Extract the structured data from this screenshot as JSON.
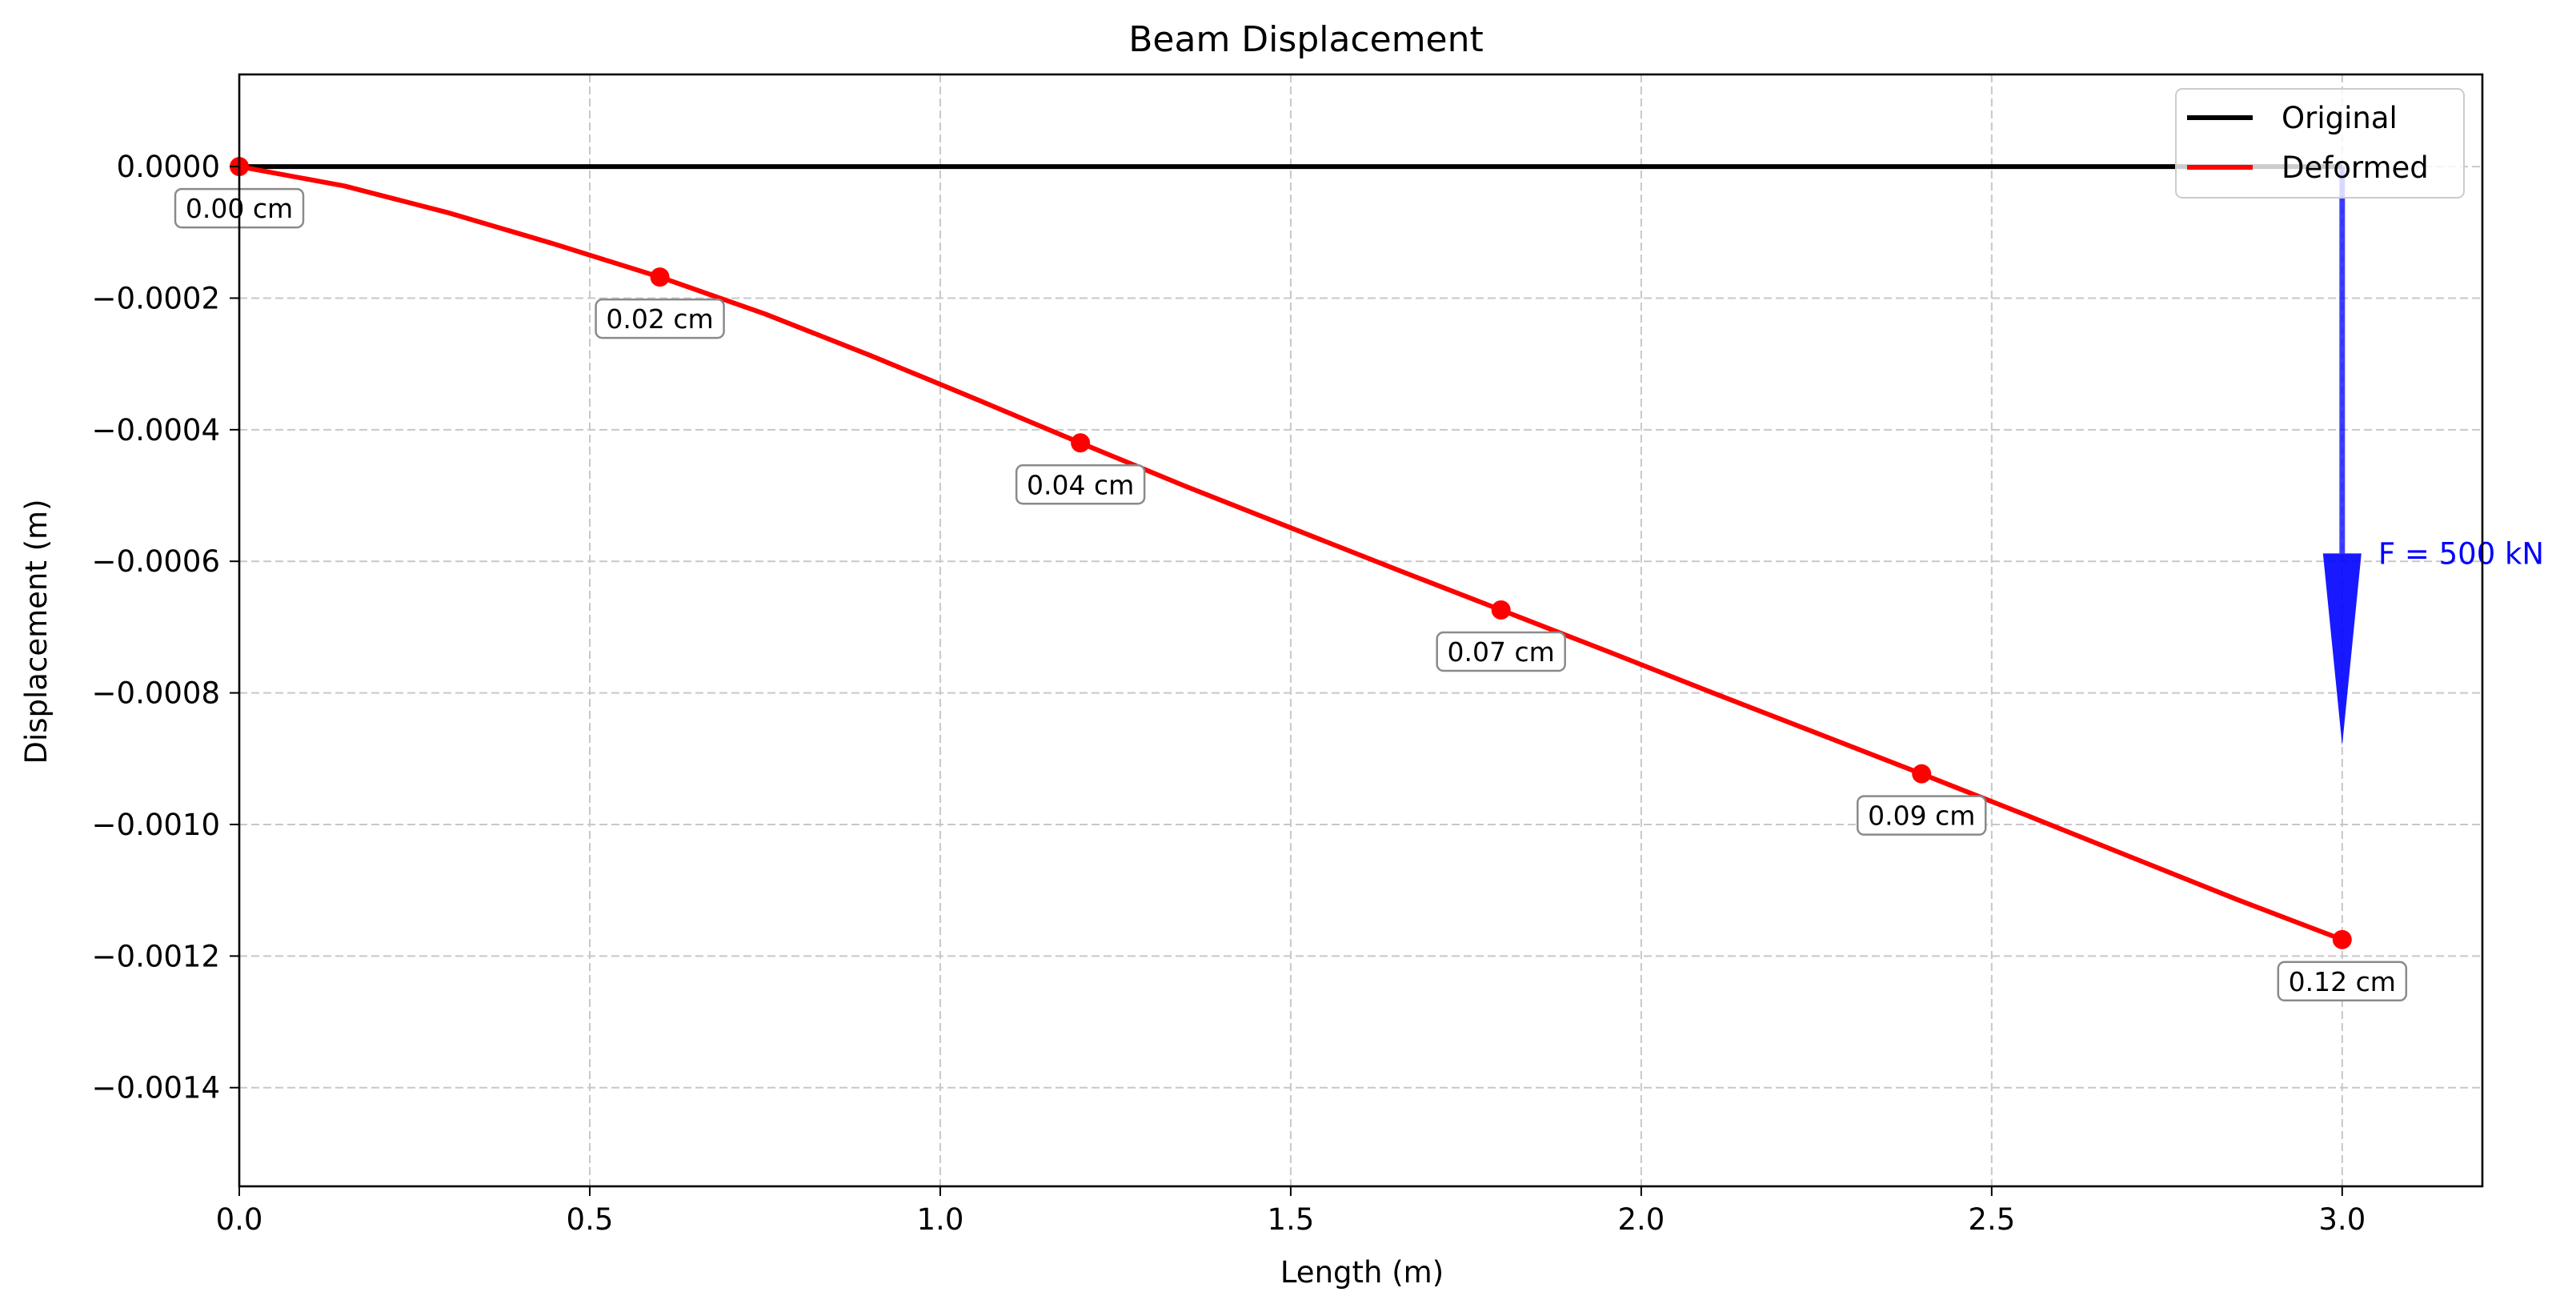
{
  "chart_data": {
    "type": "line",
    "title": "Beam Displacement",
    "xlabel": "Length (m)",
    "ylabel": "Displacement (m)",
    "xlim": [
      0,
      3.2
    ],
    "ylim": [
      -0.00155,
      0.00014
    ],
    "grid": true,
    "grid_style": "dashed",
    "legend_position": "top-right",
    "x_ticks": [
      0,
      0.5,
      1.0,
      1.5,
      2.0,
      2.5,
      3.0
    ],
    "x_tick_labels": [
      "0.0",
      "0.5",
      "1.0",
      "1.5",
      "2.0",
      "2.5",
      "3.0"
    ],
    "y_ticks": [
      0,
      -0.0002,
      -0.0004,
      -0.0006,
      -0.0008,
      -0.001,
      -0.0012,
      -0.0014
    ],
    "y_tick_labels": [
      "0.0000",
      "−0.0002",
      "−0.0004",
      "−0.0006",
      "−0.0008",
      "−0.0010",
      "−0.0012",
      "−0.0014"
    ],
    "series": [
      {
        "name": "Original",
        "color": "#000000",
        "x": [
          0,
          3.0
        ],
        "y": [
          0,
          0
        ]
      },
      {
        "name": "Deformed",
        "color": "#ff0000",
        "x": [
          0,
          0.15,
          0.3,
          0.45,
          0.6,
          0.75,
          0.9,
          1.05,
          1.2,
          1.35,
          1.5,
          1.65,
          1.8,
          1.95,
          2.1,
          2.25,
          2.4,
          2.55,
          2.7,
          2.85,
          3.0
        ],
        "y": [
          0,
          -2.95e-05,
          -7.07e-05,
          -0.000118,
          -0.000168,
          -0.000224,
          -0.000287,
          -0.000353,
          -0.00042,
          -0.000486,
          -0.000549,
          -0.000612,
          -0.000674,
          -0.000736,
          -0.000799,
          -0.000861,
          -0.000923,
          -0.000986,
          -0.00105,
          -0.001114,
          -0.001175
        ]
      }
    ],
    "markers": {
      "x": [
        0,
        0.6,
        1.2,
        1.8,
        2.4,
        3.0
      ],
      "y": [
        0,
        -0.000168,
        -0.00042,
        -0.000674,
        -0.000923,
        -0.001175
      ],
      "labels": [
        "0.00 cm",
        "0.02 cm",
        "0.04 cm",
        "0.07 cm",
        "0.09 cm",
        "0.12 cm"
      ]
    },
    "force": {
      "label": "F = 500 kN",
      "x": 3.0,
      "y_start": 0,
      "y_end": -0.00088,
      "color": "#0000ff"
    }
  }
}
